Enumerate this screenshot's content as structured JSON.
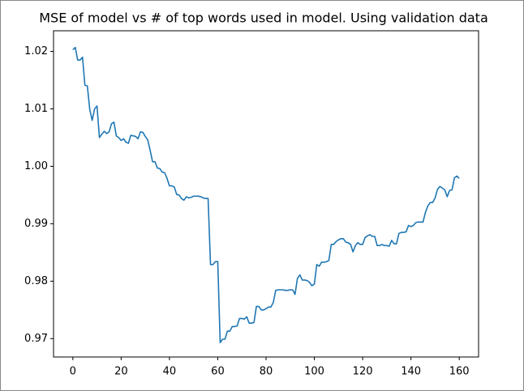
{
  "chart_data": {
    "type": "line",
    "title": "MSE of model vs # of top words used in model. Using validation data",
    "x": [
      0,
      1,
      2,
      3,
      4,
      5,
      6,
      7,
      8,
      9,
      10,
      11,
      12,
      13,
      14,
      15,
      16,
      17,
      18,
      19,
      20,
      21,
      22,
      23,
      24,
      25,
      26,
      27,
      28,
      29,
      30,
      31,
      32,
      33,
      34,
      35,
      36,
      37,
      38,
      39,
      40,
      41,
      42,
      43,
      44,
      45,
      46,
      47,
      48,
      49,
      50,
      51,
      52,
      53,
      54,
      55,
      56,
      57,
      58,
      59,
      60,
      61,
      62,
      63,
      64,
      65,
      66,
      67,
      68,
      69,
      70,
      71,
      72,
      73,
      74,
      75,
      76,
      77,
      78,
      79,
      80,
      81,
      82,
      83,
      84,
      85,
      86,
      87,
      88,
      89,
      90,
      91,
      92,
      93,
      94,
      95,
      96,
      97,
      98,
      99,
      100,
      101,
      102,
      103,
      104,
      105,
      106,
      107,
      108,
      109,
      110,
      111,
      112,
      113,
      114,
      115,
      116,
      117,
      118,
      119,
      120,
      121,
      122,
      123,
      124,
      125,
      126,
      127,
      128,
      129,
      130,
      131,
      132,
      133,
      134,
      135,
      136,
      137,
      138,
      139,
      140,
      141,
      142,
      143,
      144,
      145,
      146,
      147,
      148,
      149,
      150,
      151,
      152,
      153,
      154,
      155,
      156,
      157,
      158,
      159,
      160
    ],
    "series": [
      {
        "color": "#1f77b4",
        "values": [
          1.0203,
          1.0207,
          1.0185,
          1.0185,
          1.019,
          1.0141,
          1.014,
          1.0099,
          1.008,
          1.01,
          1.0105,
          1.005,
          1.0056,
          1.0061,
          1.0057,
          1.006,
          1.0074,
          1.0077,
          1.0053,
          1.005,
          1.0045,
          1.0048,
          1.0042,
          1.004,
          1.0054,
          1.0053,
          1.0052,
          1.0048,
          1.006,
          1.0059,
          1.0052,
          1.0046,
          1.0028,
          1.0008,
          1.0008,
          0.9997,
          0.9996,
          0.999,
          0.9989,
          0.9979,
          0.9966,
          0.9966,
          0.9964,
          0.9951,
          0.995,
          0.9944,
          0.9941,
          0.9947,
          0.9945,
          0.9946,
          0.9948,
          0.9948,
          0.9948,
          0.9947,
          0.9945,
          0.9944,
          0.9944,
          0.9829,
          0.9829,
          0.9834,
          0.9834,
          0.9693,
          0.9699,
          0.9699,
          0.9713,
          0.9713,
          0.9721,
          0.9721,
          0.9722,
          0.9735,
          0.9735,
          0.9734,
          0.9738,
          0.9727,
          0.9727,
          0.9728,
          0.9756,
          0.9756,
          0.975,
          0.975,
          0.9752,
          0.9755,
          0.9755,
          0.9763,
          0.9784,
          0.9785,
          0.9785,
          0.9785,
          0.9784,
          0.9784,
          0.9785,
          0.9785,
          0.9777,
          0.9805,
          0.9811,
          0.9802,
          0.9802,
          0.9801,
          0.9798,
          0.9792,
          0.9795,
          0.9829,
          0.9826,
          0.9833,
          0.9833,
          0.9834,
          0.9836,
          0.9864,
          0.9864,
          0.9869,
          0.9872,
          0.9874,
          0.9874,
          0.9868,
          0.9867,
          0.9864,
          0.9851,
          0.9862,
          0.9867,
          0.9864,
          0.9864,
          0.9876,
          0.9879,
          0.9881,
          0.9878,
          0.9878,
          0.9862,
          0.9862,
          0.9864,
          0.9862,
          0.9862,
          0.9861,
          0.9871,
          0.9865,
          0.9865,
          0.9883,
          0.9885,
          0.9885,
          0.9886,
          0.9897,
          0.9895,
          0.9897,
          0.9902,
          0.9903,
          0.9903,
          0.9903,
          0.992,
          0.9931,
          0.9937,
          0.9937,
          0.9945,
          0.996,
          0.9965,
          0.9962,
          0.9959,
          0.9947,
          0.9958,
          0.9959,
          0.998,
          0.9983,
          0.9979
        ]
      }
    ],
    "xlim": [
      -8,
      168
    ],
    "xticks": [
      0,
      20,
      40,
      60,
      80,
      100,
      120,
      140,
      160
    ],
    "ylim": [
      0.9668,
      1.0236
    ],
    "yticks": [
      0.97,
      0.98,
      0.99,
      {
        "value": 1,
        "label": "1.00"
      },
      1.01,
      1.02
    ],
    "grid": false
  }
}
